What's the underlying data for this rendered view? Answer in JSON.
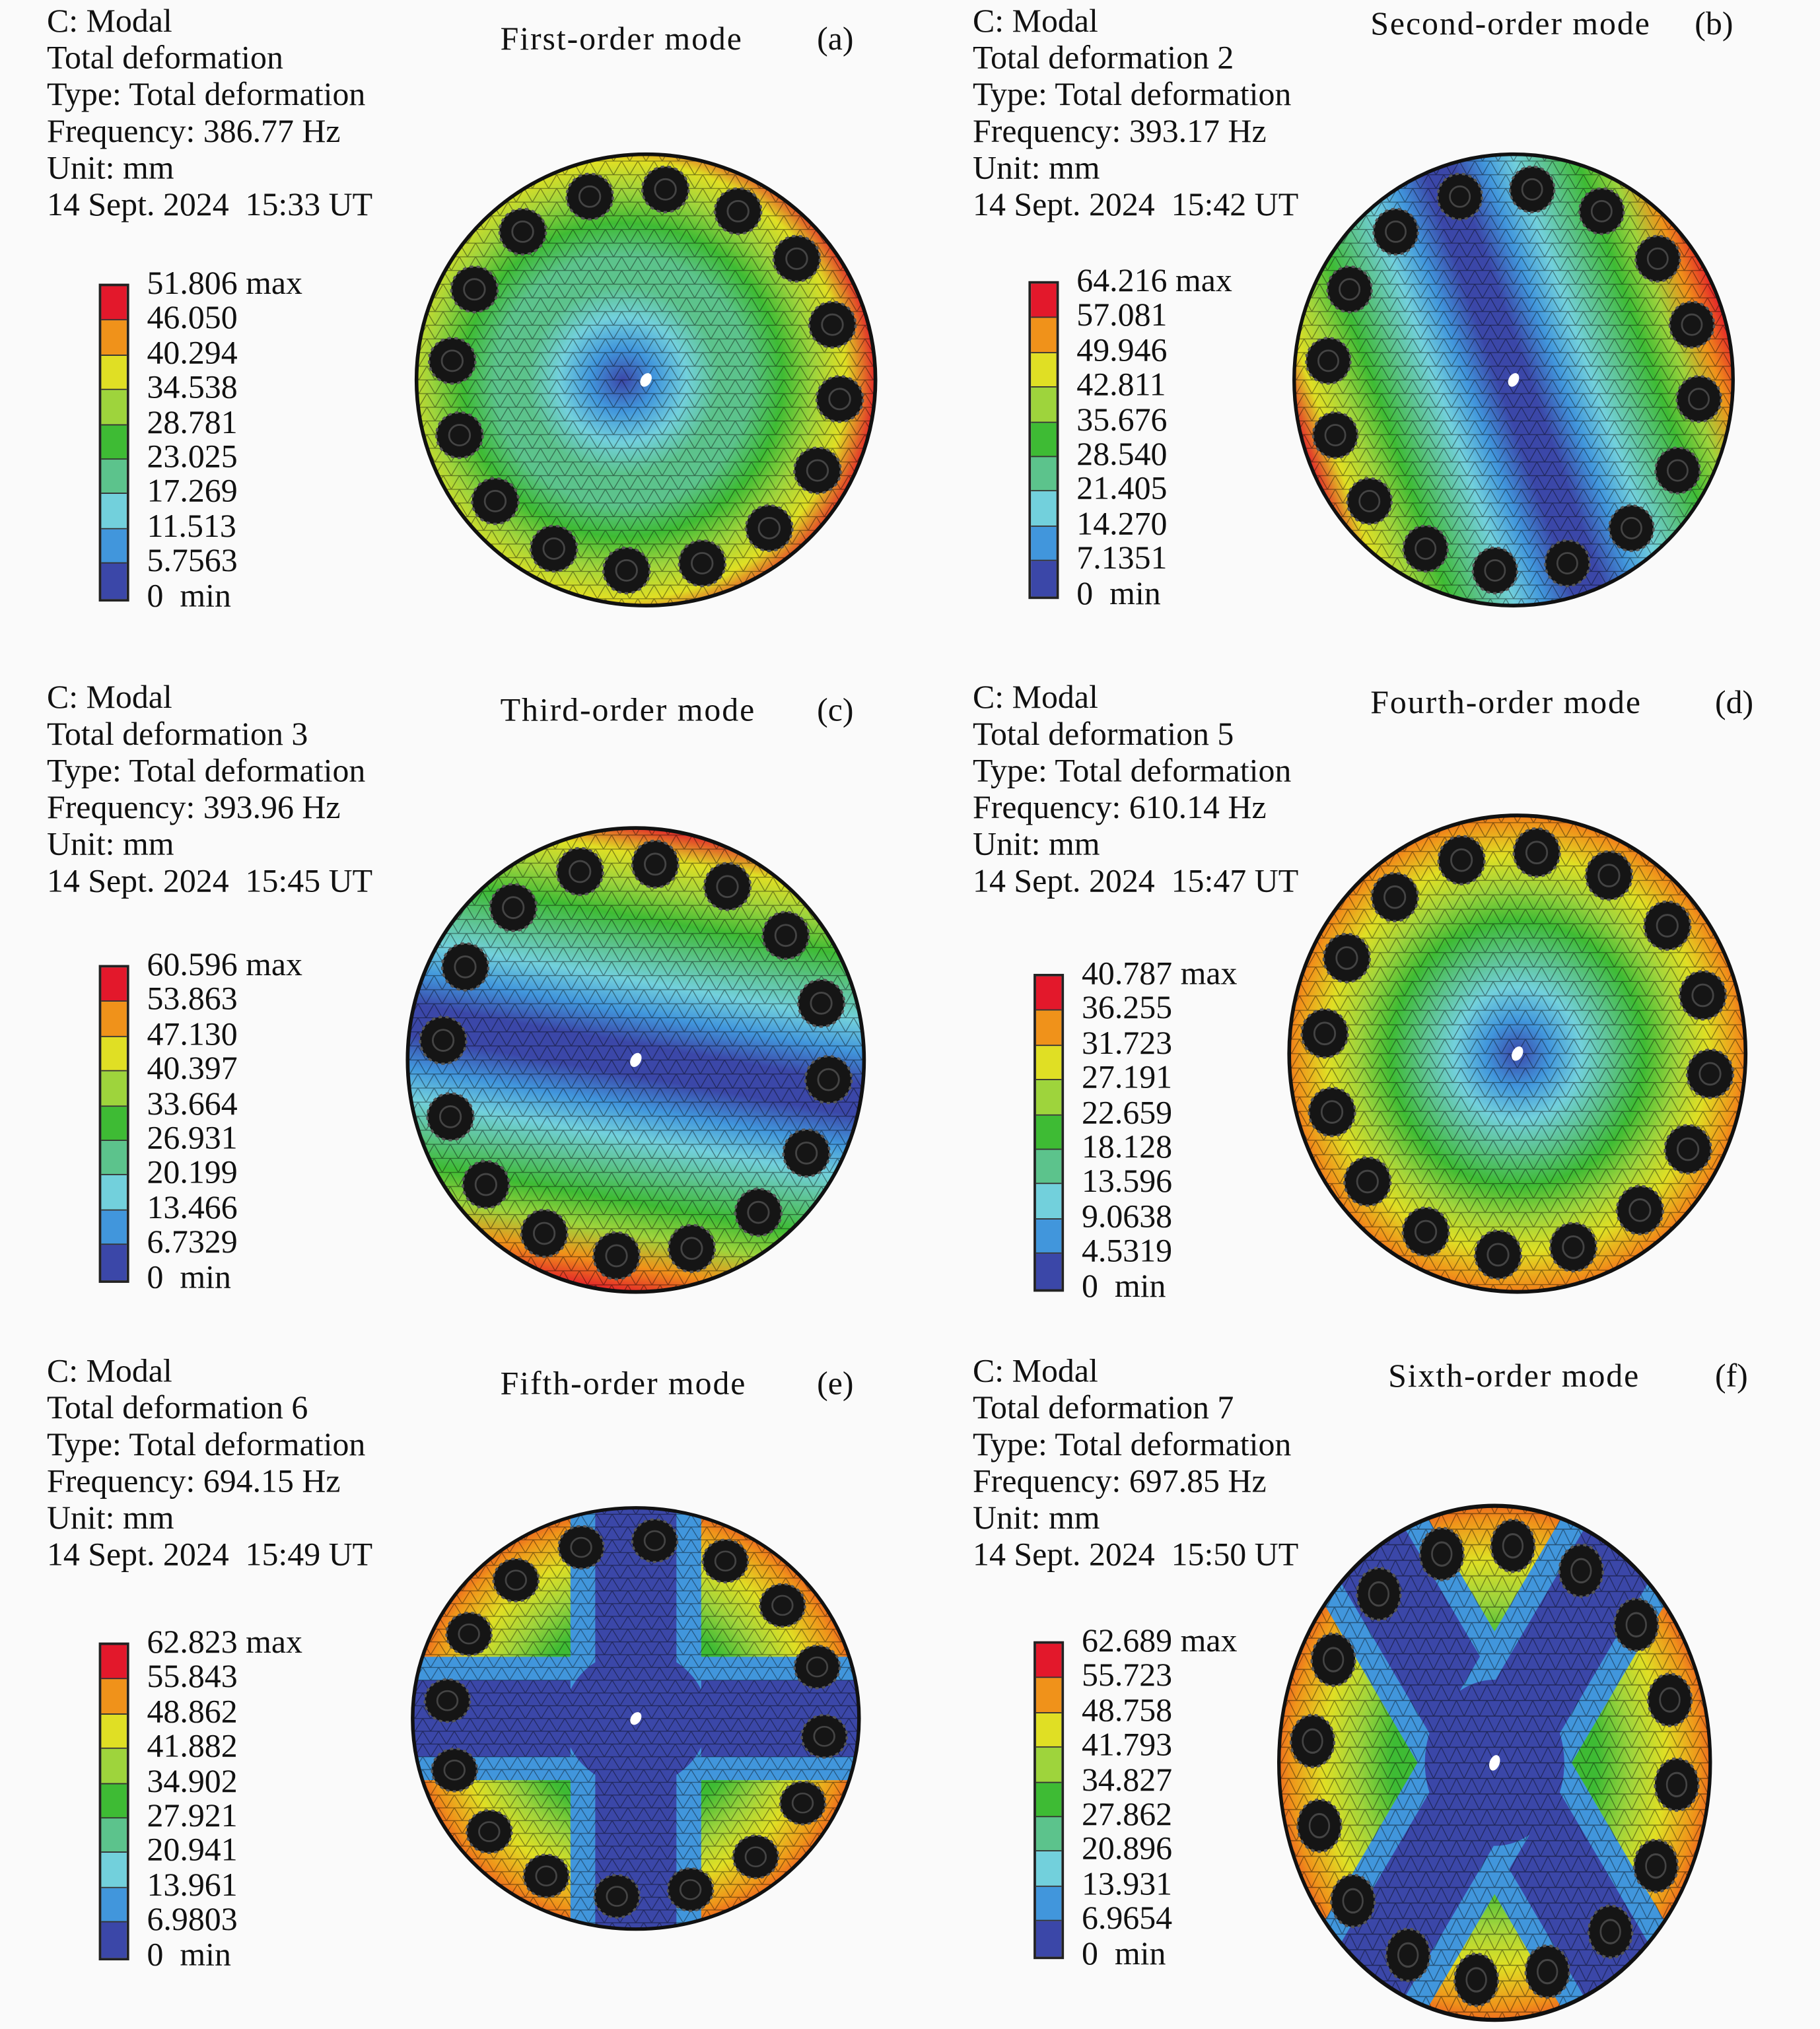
{
  "legend_colors": [
    "#e3182b",
    "#f0921a",
    "#e0df24",
    "#9ed43c",
    "#3ebb34",
    "#5cc38c",
    "#72d0dc",
    "#4196dc",
    "#3b47a8"
  ],
  "panels": [
    {
      "title": "First-order mode",
      "label": "(a)",
      "pattern": "concentric",
      "info": [
        "C: Modal",
        "Total deformation",
        "Type: Total deformation",
        "Frequency: 386.77 Hz",
        "Unit: mm",
        "14 Sept. 2024  15:33 UT"
      ],
      "legend": [
        "51.806 max",
        "46.050",
        "40.294",
        "34.538",
        "28.781",
        "23.025",
        "17.269",
        "11.513",
        "5.7563",
        "0  min"
      ]
    },
    {
      "title": "Second-order mode",
      "label": "(b)",
      "pattern": "band-diagonal",
      "info": [
        "C: Modal",
        "Total deformation 2",
        "Type: Total deformation",
        "Frequency: 393.17 Hz",
        "Unit: mm",
        "14 Sept. 2024  15:42 UT"
      ],
      "legend": [
        "64.216 max",
        "57.081",
        "49.946",
        "42.811",
        "35.676",
        "28.540",
        "21.405",
        "14.270",
        "7.1351",
        "0  min"
      ]
    },
    {
      "title": "Third-order mode",
      "label": "(c)",
      "pattern": "band-horizontal",
      "info": [
        "C: Modal",
        "Total deformation 3",
        "Type: Total deformation",
        "Frequency: 393.96 Hz",
        "Unit: mm",
        "14 Sept. 2024  15:45 UT"
      ],
      "legend": [
        "60.596 max",
        "53.863",
        "47.130",
        "40.397",
        "33.664",
        "26.931",
        "20.199",
        "13.466",
        "6.7329",
        "0  min"
      ]
    },
    {
      "title": "Fourth-order mode",
      "label": "(d)",
      "pattern": "concentric-strong",
      "info": [
        "C: Modal",
        "Total deformation 5",
        "Type: Total deformation",
        "Frequency: 610.14 Hz",
        "Unit: mm",
        "14 Sept. 2024  15:47 UT"
      ],
      "legend": [
        "40.787 max",
        "36.255",
        "31.723",
        "27.191",
        "22.659",
        "18.128",
        "13.596",
        "9.0638",
        "4.5319",
        "0  min"
      ]
    },
    {
      "title": "Fifth-order mode",
      "label": "(e)",
      "pattern": "cross",
      "info": [
        "C: Modal",
        "Total deformation 6",
        "Type: Total deformation",
        "Frequency: 694.15 Hz",
        "Unit: mm",
        "14 Sept. 2024  15:49 UT"
      ],
      "legend": [
        "62.823 max",
        "55.843",
        "48.862",
        "41.882",
        "34.902",
        "27.921",
        "20.941",
        "13.961",
        "6.9803",
        "0  min"
      ]
    },
    {
      "title": "Sixth-order mode",
      "label": "(f)",
      "pattern": "x-shape",
      "info": [
        "C: Modal",
        "Total deformation 7",
        "Type: Total deformation",
        "Frequency: 697.85 Hz",
        "Unit: mm",
        "14 Sept. 2024  15:50 UT"
      ],
      "legend": [
        "62.689 max",
        "55.723",
        "48.758",
        "41.793",
        "34.827",
        "27.862",
        "20.896",
        "13.931",
        "6.9654",
        "0  min"
      ]
    }
  ]
}
